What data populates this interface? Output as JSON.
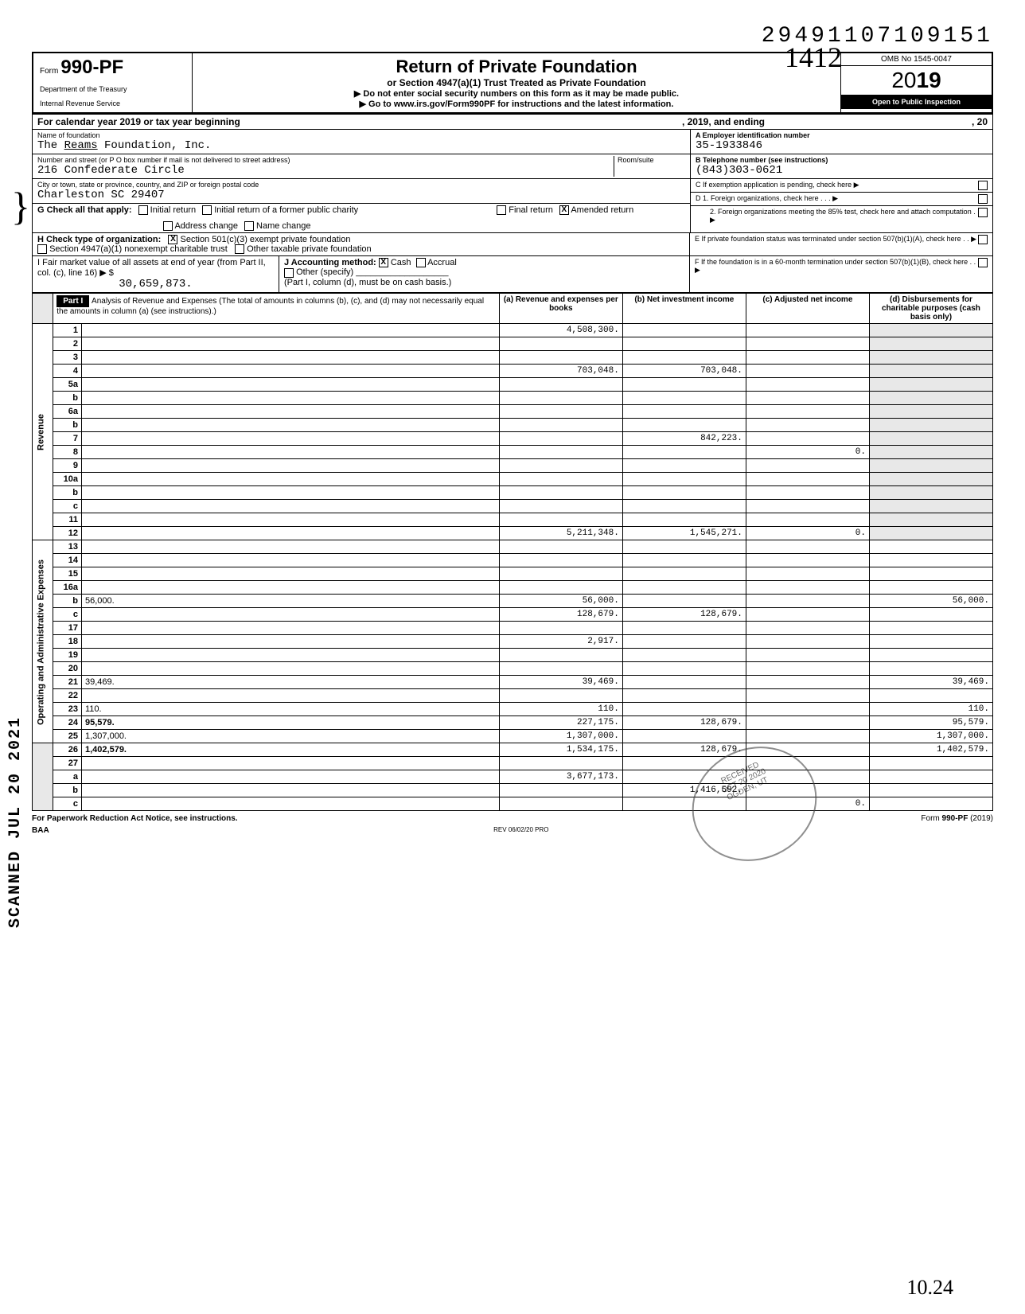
{
  "top_number": "29491107109151",
  "form": {
    "prefix": "Form",
    "number": "990-PF",
    "dept1": "Department of the Treasury",
    "dept2": "Internal Revenue Service"
  },
  "title": {
    "main": "Return of Private Foundation",
    "sub": "or Section 4947(a)(1) Trust Treated as Private Foundation",
    "inst1": "▶ Do not enter social security numbers on this form as it may be made public.",
    "inst2": "▶ Go to www.irs.gov/Form990PF for instructions and the latest information.",
    "handwritten": "1412"
  },
  "rightbox": {
    "omb": "OMB No 1545-0047",
    "year_prefix": "20",
    "year_bold": "19",
    "inspection": "Open to Public Inspection"
  },
  "cal": {
    "text1": "For calendar year 2019 or tax year beginning",
    "text2": ", 2019, and ending",
    "text3": ", 20"
  },
  "foundation": {
    "name_label": "Name of foundation",
    "name": "The Reams Foundation, Inc.",
    "addr_label": "Number and street (or P O  box number if mail is not delivered to street address)",
    "addr": "216 Confederate Circle",
    "city_label": "City or town, state or province, country, and ZIP or foreign postal code",
    "city": "Charleston SC 29407",
    "room_label": "Room/suite"
  },
  "rightinfo": {
    "a_label": "A  Employer identification number",
    "a_val": "35-1933846",
    "b_label": "B  Telephone number (see instructions)",
    "b_val": "(843)303-0621",
    "c_label": "C  If exemption application is pending, check here ▶",
    "d1": "D  1. Foreign organizations, check here .  .  .  ▶",
    "d2": "2. Foreign organizations meeting the 85% test, check here and attach computation  .  ▶",
    "e": "E  If private foundation status was terminated under section 507(b)(1)(A), check here  .  .  ▶",
    "f": "F  If the foundation is in a 60-month termination under section 507(b)(1)(B), check here  .  .  ▶"
  },
  "g": {
    "label": "G  Check all that apply:",
    "initial": "Initial return",
    "initial_former": "Initial return of a former public charity",
    "final": "Final return",
    "amended": "Amended return",
    "addr_change": "Address change",
    "name_change": "Name change"
  },
  "h": {
    "label": "H  Check type of organization:",
    "c3": "Section 501(c)(3) exempt private foundation",
    "trust": "Section 4947(a)(1) nonexempt charitable trust",
    "other": "Other taxable private foundation"
  },
  "i": {
    "label": "I   Fair market value of all assets at end of year  (from Part II, col. (c), line 16) ▶ $",
    "value": "30,659,873."
  },
  "j": {
    "label": "J   Accounting method:",
    "cash": "Cash",
    "accrual": "Accrual",
    "other": "Other (specify)",
    "note": "(Part I, column (d), must be on cash basis.)"
  },
  "part1": {
    "label": "Part I",
    "desc": "Analysis of Revenue and Expenses (The total of amounts in columns (b), (c), and (d) may not necessarily equal the amounts in column (a) (see instructions).)",
    "col_a": "(a) Revenue and expenses per books",
    "col_b": "(b) Net investment income",
    "col_c": "(c) Adjusted net income",
    "col_d": "(d) Disbursements for charitable purposes (cash basis only)"
  },
  "revenue_label": "Revenue",
  "expenses_label": "Operating and Administrative Expenses",
  "side_stamp": "SCANNED JUL 20 2021",
  "rows": [
    {
      "n": "1",
      "d": "",
      "a": "4,508,300.",
      "b": "",
      "c": ""
    },
    {
      "n": "2",
      "d": "",
      "a": "",
      "b": "",
      "c": ""
    },
    {
      "n": "3",
      "d": "",
      "a": "",
      "b": "",
      "c": ""
    },
    {
      "n": "4",
      "d": "",
      "a": "703,048.",
      "b": "703,048.",
      "c": ""
    },
    {
      "n": "5a",
      "d": "",
      "a": "",
      "b": "",
      "c": ""
    },
    {
      "n": "b",
      "d": "",
      "a": "",
      "b": "",
      "c": ""
    },
    {
      "n": "6a",
      "d": "",
      "a": "",
      "b": "",
      "c": ""
    },
    {
      "n": "b",
      "d": "",
      "a": "",
      "b": "",
      "c": ""
    },
    {
      "n": "7",
      "d": "",
      "a": "",
      "b": "842,223.",
      "c": ""
    },
    {
      "n": "8",
      "d": "",
      "a": "",
      "b": "",
      "c": "0."
    },
    {
      "n": "9",
      "d": "",
      "a": "",
      "b": "",
      "c": ""
    },
    {
      "n": "10a",
      "d": "",
      "a": "",
      "b": "",
      "c": ""
    },
    {
      "n": "b",
      "d": "",
      "a": "",
      "b": "",
      "c": ""
    },
    {
      "n": "c",
      "d": "",
      "a": "",
      "b": "",
      "c": ""
    },
    {
      "n": "11",
      "d": "",
      "a": "",
      "b": "",
      "c": ""
    },
    {
      "n": "12",
      "d": "",
      "a": "5,211,348.",
      "b": "1,545,271.",
      "c": "0.",
      "bold": true
    },
    {
      "n": "13",
      "d": "",
      "a": "",
      "b": "",
      "c": ""
    },
    {
      "n": "14",
      "d": "",
      "a": "",
      "b": "",
      "c": ""
    },
    {
      "n": "15",
      "d": "",
      "a": "",
      "b": "",
      "c": ""
    },
    {
      "n": "16a",
      "d": "",
      "a": "",
      "b": "",
      "c": ""
    },
    {
      "n": "b",
      "d": "56,000.",
      "a": "56,000.",
      "b": "",
      "c": ""
    },
    {
      "n": "c",
      "d": "",
      "a": "128,679.",
      "b": "128,679.",
      "c": ""
    },
    {
      "n": "17",
      "d": "",
      "a": "",
      "b": "",
      "c": ""
    },
    {
      "n": "18",
      "d": "",
      "a": "2,917.",
      "b": "",
      "c": ""
    },
    {
      "n": "19",
      "d": "",
      "a": "",
      "b": "",
      "c": ""
    },
    {
      "n": "20",
      "d": "",
      "a": "",
      "b": "",
      "c": ""
    },
    {
      "n": "21",
      "d": "39,469.",
      "a": "39,469.",
      "b": "",
      "c": ""
    },
    {
      "n": "22",
      "d": "",
      "a": "",
      "b": "",
      "c": ""
    },
    {
      "n": "23",
      "d": "110.",
      "a": "110.",
      "b": "",
      "c": ""
    },
    {
      "n": "24",
      "d": "95,579.",
      "a": "227,175.",
      "b": "128,679.",
      "c": "",
      "bold": true
    },
    {
      "n": "25",
      "d": "1,307,000.",
      "a": "1,307,000.",
      "b": "",
      "c": ""
    },
    {
      "n": "26",
      "d": "1,402,579.",
      "a": "1,534,175.",
      "b": "128,679.",
      "c": "",
      "bold": true
    },
    {
      "n": "27",
      "d": "",
      "a": "",
      "b": "",
      "c": ""
    },
    {
      "n": "a",
      "d": "",
      "a": "3,677,173.",
      "b": "",
      "c": "",
      "bold": true
    },
    {
      "n": "b",
      "d": "",
      "a": "",
      "b": "1,416,592.",
      "c": "",
      "bold": true
    },
    {
      "n": "c",
      "d": "",
      "a": "",
      "b": "",
      "c": "0.",
      "bold": true
    }
  ],
  "footer": {
    "left": "For Paperwork Reduction Act Notice, see instructions.",
    "baa": "BAA",
    "mid": "REV 06/02/20 PRO",
    "right": "Form 990-PF (2019)"
  },
  "hand_bottom": "10.24"
}
